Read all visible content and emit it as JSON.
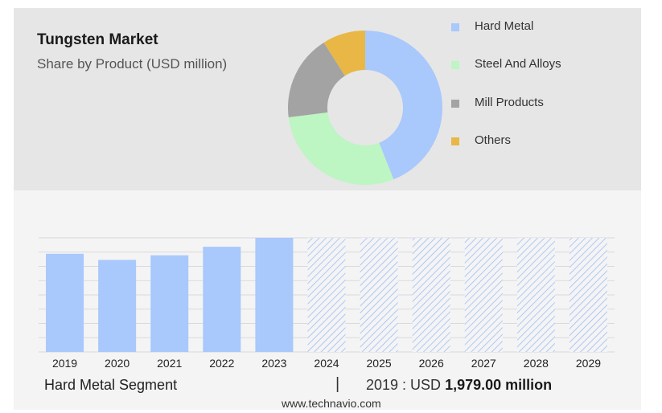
{
  "chart_data": [
    {
      "type": "pie",
      "title": "Tungsten Market",
      "subtitle": "Share by Product (USD million)",
      "legend_position": "right",
      "slices": [
        {
          "name": "Hard Metal",
          "value": 44,
          "color": "#a9c8fb"
        },
        {
          "name": "Steel And Alloys",
          "value": 29,
          "color": "#bdf5c3"
        },
        {
          "name": "Mill Products",
          "value": 18,
          "color": "#a3a3a3"
        },
        {
          "name": "Others",
          "value": 9,
          "color": "#e8b746"
        }
      ]
    },
    {
      "type": "bar",
      "categories": [
        "2019",
        "2020",
        "2021",
        "2022",
        "2023",
        "2024",
        "2025",
        "2026",
        "2027",
        "2028",
        "2029"
      ],
      "values": [
        1979,
        1855,
        1948,
        2120,
        2300,
        null,
        null,
        null,
        null,
        null,
        null
      ],
      "forecast_categories": [
        "2024",
        "2025",
        "2026",
        "2027",
        "2028",
        "2029"
      ],
      "forecast_fill": "hatched",
      "ylim": [
        0,
        2300
      ],
      "grid": true,
      "color": "#a9c8fb"
    }
  ],
  "footer": {
    "segment_label": "Hard Metal Segment",
    "separator": "|",
    "year_value": "2019 : USD",
    "amount": "1,979.00 million"
  },
  "source": "www.technavio.com"
}
